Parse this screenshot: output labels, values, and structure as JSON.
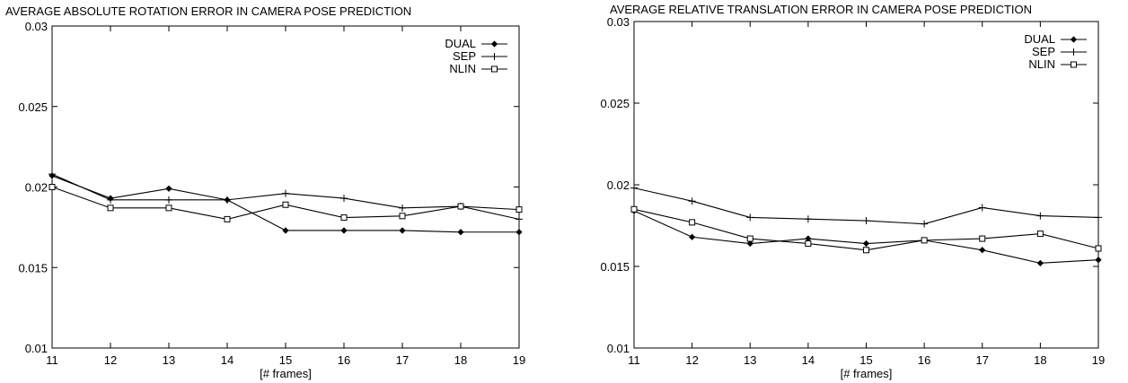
{
  "chart_data": [
    {
      "type": "line",
      "title": "AVERAGE ABSOLUTE ROTATION ERROR IN CAMERA POSE PREDICTION",
      "xlabel": "[# frames]",
      "ylabel": "",
      "x": [
        11,
        12,
        13,
        14,
        15,
        16,
        17,
        18,
        19
      ],
      "x_ticks": [
        "11",
        "12",
        "13",
        "14",
        "15",
        "16",
        "17",
        "18",
        "19"
      ],
      "y_ticks": [
        "0.01",
        "0.015",
        "0.02",
        "0.025",
        "0.03"
      ],
      "xlim": [
        11,
        19
      ],
      "ylim": [
        0.01,
        0.03
      ],
      "grid": false,
      "legend": "top-right",
      "series": [
        {
          "name": "DUAL",
          "marker": "diamond",
          "values": [
            0.0207,
            0.0193,
            0.0199,
            0.0192,
            0.0173,
            0.0173,
            0.0173,
            0.0172,
            0.0172
          ]
        },
        {
          "name": "SEP",
          "marker": "plus",
          "values": [
            0.0208,
            0.0192,
            0.0192,
            0.0192,
            0.0196,
            0.0193,
            0.0187,
            0.0188,
            0.018
          ]
        },
        {
          "name": "NLIN",
          "marker": "square",
          "values": [
            0.02,
            0.0187,
            0.0187,
            0.018,
            0.0189,
            0.0181,
            0.0182,
            0.0188,
            0.0186
          ]
        }
      ]
    },
    {
      "type": "line",
      "title": "AVERAGE RELATIVE TRANSLATION ERROR IN  CAMERA POSE PREDICTION",
      "xlabel": "[# frames]",
      "ylabel": "",
      "x": [
        11,
        12,
        13,
        14,
        15,
        16,
        17,
        18,
        19
      ],
      "x_ticks": [
        "11",
        "12",
        "13",
        "14",
        "15",
        "16",
        "17",
        "18",
        "19"
      ],
      "y_ticks": [
        "0.01",
        "0.015",
        "0.02",
        "0.025",
        "0.03"
      ],
      "xlim": [
        11,
        19
      ],
      "ylim": [
        0.01,
        0.03
      ],
      "grid": false,
      "legend": "top-right",
      "series": [
        {
          "name": "DUAL",
          "marker": "diamond",
          "values": [
            0.0184,
            0.0168,
            0.0164,
            0.0167,
            0.0164,
            0.0166,
            0.016,
            0.0152,
            0.0154
          ]
        },
        {
          "name": "SEP",
          "marker": "plus",
          "values": [
            0.0198,
            0.019,
            0.018,
            0.0179,
            0.0178,
            0.0176,
            0.0186,
            0.0181,
            0.018
          ]
        },
        {
          "name": "NLIN",
          "marker": "square",
          "values": [
            0.0185,
            0.0177,
            0.0167,
            0.0164,
            0.016,
            0.0166,
            0.0167,
            0.017,
            0.0161
          ]
        }
      ]
    }
  ]
}
